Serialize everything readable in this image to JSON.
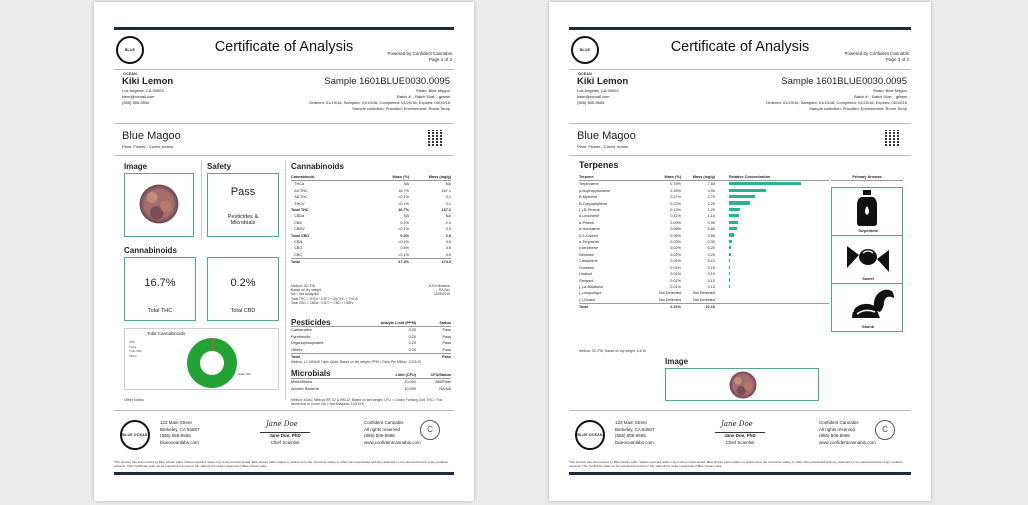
{
  "doc": {
    "title": "Certificate of Analysis",
    "powered": "Powered by Confident Cannabis",
    "logo_text": "BLUE OCEAN",
    "client": {
      "name": "Kiki Lemon",
      "city": "Los Angeles, CA 90003",
      "email": "kiem@ccmail.com",
      "phone": "(555) 555-5555"
    },
    "sample": {
      "id": "Sample 1601BLUE0030.0095",
      "strain_line": "Strain: Blue Magoo",
      "batch_line": "Batch #: ; Batch Size: - grams",
      "dates_line": "Ordered: 01/19/16; Sampled: 01/19/16; Completed: 01/20/16; Expires: 05/19/16",
      "collection_line": "Sample collection: Provided; Environment: Room Temp"
    },
    "strain": {
      "name": "Blue Magoo",
      "sub": "Plant, Flower - Cured, Indoor"
    },
    "footer": {
      "lab_addr": [
        "123 Main Street",
        "Berkeley, CA 94587",
        "(555) 555-5555",
        "blueoceanlabs.com"
      ],
      "signature": "Jane Doe",
      "signer": "Jane Doe, PhD",
      "signer_title": "Chief Scientist",
      "cc_lines": [
        "Confident Cannabis",
        "All rights reserved",
        "(866) 506-5866",
        "www.confidentcannabis.com"
      ],
      "disclaimer": "This product has been tested by Blue Ocean Labs. Values reported relate only to the product tested. Blue Ocean Labs makes no claims as to the consumer safety or other risks associated with any detected or non-detected levels of any residual solvents. This Certificate shall not be reproduced except in full, without the written approval of Blue Ocean Labs."
    }
  },
  "page1": {
    "page_no": "Page 1 of 3",
    "image_h": "Image",
    "safety_h": "Safety",
    "safety_val": "Pass",
    "safety_sub": "Pesticides & Microbials",
    "cann_h": "Cannabinoids",
    "total_thc": "16.7%",
    "total_thc_lbl": "Total THC",
    "total_cbd": "0.2%",
    "total_cbd_lbl": "Total CBD",
    "donut_title": "Total Cannabinoids",
    "donut_legend": [
      "CBD",
      "THCa",
      "Total CBD",
      "CBGa"
    ],
    "donut_outer": "Total THC",
    "other_notes": "Other Notes:",
    "cannabinoids_table": {
      "title": "Cannabinoids",
      "cols": [
        "Cannabinoid",
        "Mass (%)",
        "Mass (mg/g)"
      ],
      "rows": [
        [
          "THCa",
          "NA",
          "NA",
          ""
        ],
        [
          "Δ9-THC",
          "16.7%",
          "167.1",
          ""
        ],
        [
          "Δ8-THC",
          "<0.1%",
          "0.1",
          ""
        ],
        [
          "THCV",
          "<0.1%",
          "0.1",
          ""
        ],
        [
          "Total THC",
          "16.7%",
          "167.2",
          "bold"
        ],
        [
          "CBDa",
          "NA",
          "NA",
          ""
        ],
        [
          "CBD",
          "0.2%",
          "2.0",
          ""
        ],
        [
          "CBDV",
          "<0.1%",
          "0.0",
          ""
        ],
        [
          "Total CBD",
          "0.2%",
          "2.0",
          "bold"
        ],
        [
          "CBN",
          "<0.1%",
          "0.6",
          ""
        ],
        [
          "CBG",
          "0.5%",
          "4.5",
          ""
        ],
        [
          "CBC",
          "<0.1%",
          "0.0",
          ""
        ],
        [
          "Total",
          "17.4%",
          "174.3",
          "tot"
        ]
      ],
      "notes": [
        "Method: GC-FID",
        "Based on dry weight",
        "NA = Not Analyzed",
        "Total THC = THCa * 0.877 + Δ9-THC + THCA",
        "Total CBD = CBDa * 0.877 + CBD + CBDV"
      ],
      "moisture": "8.4% Moisture",
      "analyzed": "RA Sec",
      "date": "12/08/2015"
    },
    "pesticides_table": {
      "title": "Pesticides",
      "cols": [
        "Analyte Limit (PPM)",
        "Status"
      ],
      "rows": [
        [
          "Carbamates",
          "0.20",
          "Pass"
        ],
        [
          "Pyrethroids",
          "0.20",
          "Pass"
        ],
        [
          "Organophosphates",
          "0.20",
          "Pass"
        ],
        [
          "Others",
          "0.20",
          "Pass"
        ],
        [
          "Total",
          "",
          "Pass"
        ]
      ],
      "note": "Method: LC-MS/MS Triple Quad; Based on dry weight; PPM = Parts Per Million; 12/31/15"
    },
    "microbials_table": {
      "title": "Microbials",
      "cols": [
        "Limit (CFU)",
        "CFU/Status"
      ],
      "rows": [
        [
          "Mold/Mildew",
          "10,000",
          "288/Pass"
        ],
        [
          "Aerobic Bacteria",
          "10,000",
          "NA/NA"
        ]
      ],
      "note": "Method: AOAC Method 997.02 & 990.12; Based on wet weight; CFU = Colony Forming Unit; TNC = Too Numerous to Count; NA = Not Analyzed; 12/31/15"
    }
  },
  "page2": {
    "page_no": "Page 3 of 3",
    "terpenes_h": "Terpenes",
    "cols": [
      "Terpene",
      "Mass (%)",
      "Mass (mg/g)",
      "Relative Concentration",
      "Primary Aromas"
    ],
    "rows": [
      [
        "Terpinolene",
        "0.76%",
        "7.60",
        0.76
      ],
      [
        "p-Isopropyltoluene",
        "0.39%",
        "3.90",
        0.39
      ],
      [
        "B-Myrcene",
        "0.27%",
        "2.70",
        0.27
      ],
      [
        "B-Caryophyllene",
        "0.22%",
        "2.20",
        0.22
      ],
      [
        "(-)-B-Pinene",
        "0.12%",
        "1.20",
        0.12
      ],
      [
        "d-Limonene",
        "0.11%",
        "1.10",
        0.11
      ],
      [
        "α-Pinene",
        "0.09%",
        "0.90",
        0.09
      ],
      [
        "α-Humulene",
        "0.08%",
        "0.80",
        0.08
      ],
      [
        "δ-3-Carene",
        "0.05%",
        "0.50",
        0.05
      ],
      [
        "α-Terpinene",
        "0.03%",
        "0.30",
        0.03
      ],
      [
        "γ-terpinene",
        "0.02%",
        "0.20",
        0.02
      ],
      [
        "Nerolidol",
        "0.02%",
        "0.20",
        0.02
      ],
      [
        "Camphene",
        "0.01%",
        "0.10",
        0.01
      ],
      [
        "Ocimene",
        "0.01%",
        "0.10",
        0.01
      ],
      [
        "Linalool",
        "0.01%",
        "0.10",
        0.01
      ],
      [
        "Geraniol",
        "0.01%",
        "0.10",
        0.01
      ],
      [
        "(-)-α-Bisabolol",
        "0.01%",
        "0.10",
        0.01
      ],
      [
        "(-)-Isopulegol",
        "Not Detected",
        "Not Detected",
        0
      ],
      [
        "(-)-Guaiol",
        "Not Detected",
        "Not Detected",
        0
      ]
    ],
    "total": [
      "Total",
      "2.21%",
      "22.10"
    ],
    "note": "Method: GC-FID; Based on dry weight; 1/4/16",
    "aromas": [
      "Turpentine",
      "Sweet",
      "Skunk"
    ],
    "image_h": "Image",
    "bar_color": "#2bb38f"
  }
}
